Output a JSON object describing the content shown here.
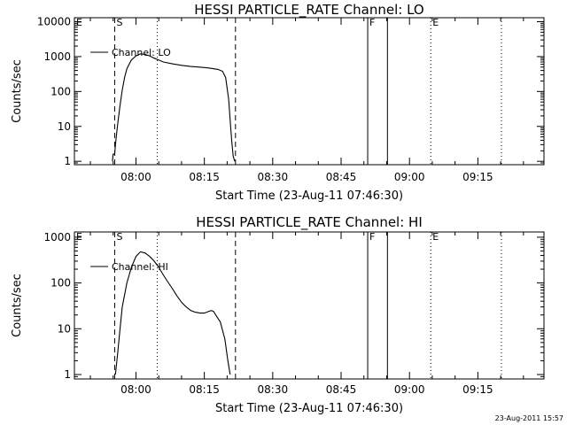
{
  "chart_data": [
    {
      "type": "line",
      "title": "HESSI PARTICLE_RATE Channel: LO",
      "xlabel": "Start Time (23-Aug-11 07:46:30)",
      "ylabel": "Counts/sec",
      "x_ticks": [
        "08:00",
        "08:15",
        "08:30",
        "08:45",
        "09:00",
        "09:15"
      ],
      "y_ticks": [
        "1",
        "10",
        "100",
        "1000",
        "10000"
      ],
      "y_scale": "log",
      "xlim": [
        "07:46:30",
        "09:29:30"
      ],
      "ylim": [
        0.8,
        13000
      ],
      "legend": "Channel: LO",
      "legend_position": "top-left",
      "series": [
        {
          "name": "Channel: LO",
          "points": [
            [
              "07:54:50",
              1
            ],
            [
              "07:55:00",
              1.6
            ],
            [
              "07:55:20",
              1.6
            ],
            [
              "07:55:30",
              3
            ],
            [
              "07:56:00",
              12
            ],
            [
              "07:56:30",
              40
            ],
            [
              "07:57:00",
              110
            ],
            [
              "07:57:30",
              250
            ],
            [
              "07:58:00",
              450
            ],
            [
              "07:59:00",
              800
            ],
            [
              "08:00:00",
              1050
            ],
            [
              "08:01:00",
              1200
            ],
            [
              "08:02:00",
              1150
            ],
            [
              "08:03:00",
              1050
            ],
            [
              "08:04:00",
              900
            ],
            [
              "08:05:00",
              800
            ],
            [
              "08:06:00",
              700
            ],
            [
              "08:08:00",
              620
            ],
            [
              "08:10:00",
              560
            ],
            [
              "08:12:00",
              520
            ],
            [
              "08:14:00",
              500
            ],
            [
              "08:16:00",
              470
            ],
            [
              "08:18:00",
              430
            ],
            [
              "08:19:00",
              380
            ],
            [
              "08:19:40",
              250
            ],
            [
              "08:20:20",
              60
            ],
            [
              "08:20:40",
              15
            ],
            [
              "08:21:00",
              4
            ],
            [
              "08:21:20",
              1.4
            ],
            [
              "08:21:40",
              1
            ]
          ]
        }
      ],
      "markers": [
        {
          "label": "E",
          "time": "07:46:30",
          "style": "none"
        },
        {
          "label": "S",
          "time": "07:55:20",
          "style": "dashed"
        },
        {
          "label": "",
          "time": "08:04:40",
          "style": "dotted"
        },
        {
          "label": "",
          "time": "08:21:50",
          "style": "dashed"
        },
        {
          "label": "F",
          "time": "08:50:50",
          "style": "solid"
        },
        {
          "label": "",
          "time": "08:55:10",
          "style": "solid"
        },
        {
          "label": "E",
          "time": "09:04:40",
          "style": "dotted"
        },
        {
          "label": "",
          "time": "09:20:10",
          "style": "dotted"
        }
      ]
    },
    {
      "type": "line",
      "title": "HESSI PARTICLE_RATE Channel: HI",
      "xlabel": "Start Time (23-Aug-11 07:46:30)",
      "ylabel": "Counts/sec",
      "x_ticks": [
        "08:00",
        "08:15",
        "08:30",
        "08:45",
        "09:00",
        "09:15"
      ],
      "y_ticks": [
        "1",
        "10",
        "100",
        "1000"
      ],
      "y_scale": "log",
      "xlim": [
        "07:46:30",
        "09:29:30"
      ],
      "ylim": [
        0.8,
        1300
      ],
      "legend": "Channel: HI",
      "legend_position": "top-left",
      "series": [
        {
          "name": "Channel: HI",
          "points": [
            [
              "07:55:30",
              1
            ],
            [
              "07:56:00",
              3
            ],
            [
              "07:56:30",
              10
            ],
            [
              "07:57:00",
              30
            ],
            [
              "07:58:00",
              100
            ],
            [
              "07:59:00",
              220
            ],
            [
              "08:00:00",
              380
            ],
            [
              "08:01:00",
              480
            ],
            [
              "08:02:00",
              450
            ],
            [
              "08:03:00",
              380
            ],
            [
              "08:04:00",
              300
            ],
            [
              "08:05:00",
              220
            ],
            [
              "08:06:00",
              150
            ],
            [
              "08:07:00",
              105
            ],
            [
              "08:08:00",
              75
            ],
            [
              "08:09:00",
              52
            ],
            [
              "08:10:00",
              38
            ],
            [
              "08:11:00",
              30
            ],
            [
              "08:12:00",
              25
            ],
            [
              "08:13:00",
              23
            ],
            [
              "08:14:00",
              22
            ],
            [
              "08:15:00",
              22
            ],
            [
              "08:16:00",
              24
            ],
            [
              "08:16:30",
              25
            ],
            [
              "08:17:00",
              24
            ],
            [
              "08:17:30",
              20
            ],
            [
              "08:18:30",
              14
            ],
            [
              "08:19:30",
              6
            ],
            [
              "08:20:10",
              2
            ],
            [
              "08:20:40",
              1
            ]
          ]
        }
      ],
      "markers": [
        {
          "label": "E",
          "time": "07:46:30",
          "style": "none"
        },
        {
          "label": "S",
          "time": "07:55:20",
          "style": "dashed"
        },
        {
          "label": "",
          "time": "08:04:40",
          "style": "dotted"
        },
        {
          "label": "",
          "time": "08:21:50",
          "style": "dashed"
        },
        {
          "label": "F",
          "time": "08:50:50",
          "style": "solid"
        },
        {
          "label": "",
          "time": "08:55:10",
          "style": "solid"
        },
        {
          "label": "E",
          "time": "09:04:40",
          "style": "dotted"
        },
        {
          "label": "",
          "time": "09:20:10",
          "style": "dotted"
        }
      ]
    }
  ],
  "footer": {
    "timestamp": "23-Aug-2011 15:57"
  }
}
